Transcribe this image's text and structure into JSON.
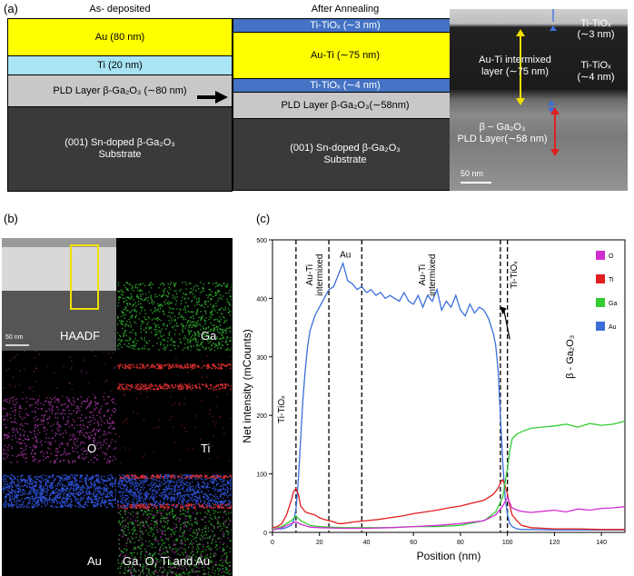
{
  "panel_a": {
    "label": "(a)",
    "as_deposited": {
      "title": "As- deposited",
      "layers": [
        {
          "text": "Au (80 nm)",
          "color": "#ffff00",
          "text_color": "#000000"
        },
        {
          "text": "Ti (20 nm)",
          "color": "#a8e4f4",
          "text_color": "#000000"
        },
        {
          "text": "PLD Layer β-Ga₂O₃ (∼80 nm)",
          "color": "#c8c8c8",
          "text_color": "#000000"
        },
        {
          "text": "(001) Sn-doped β-Ga₂O₃\nSubstrate",
          "color": "#3a3a3a",
          "text_color": "#ffffff"
        }
      ]
    },
    "after_annealing": {
      "title": "After Annealing",
      "layers": [
        {
          "text": "Ti-TiOₓ (∼3 nm)",
          "color": "#4472c4",
          "text_color": "#ffffff"
        },
        {
          "text": "Au-Ti  (∼75 nm)",
          "color": "#ffff00",
          "text_color": "#000000"
        },
        {
          "text": "Ti-TiOₓ  (∼4 nm)",
          "color": "#4472c4",
          "text_color": "#ffffff"
        },
        {
          "text": "PLD Layer β-Ga₂O₃(∼58nm)",
          "color": "#c8c8c8",
          "text_color": "#000000"
        },
        {
          "text": "(001) Sn-doped β-Ga₂O₃\nSubstrate",
          "color": "#3a3a3a",
          "text_color": "#ffffff"
        }
      ]
    },
    "tem": {
      "intermixed_label": "Au-Ti intermixed\nlayer (∼75 nm)",
      "tiox_top_label": "Ti-TiOₓ\n(∼3 nm)",
      "tiox_bottom_label": "Ti-TiOₓ\n(∼4 nm)",
      "pld_label": "β − Ga₂O₃\nPLD Layer(∼58 nm)",
      "scale_bar": "50  nm"
    }
  },
  "panel_b": {
    "label": "(b)",
    "maps": [
      {
        "label": "HAADF",
        "kind": "haadf",
        "scale_bar": "50 nm"
      },
      {
        "label": "Ga",
        "kind": "ga"
      },
      {
        "label": "O",
        "kind": "o"
      },
      {
        "label": "Ti",
        "kind": "ti"
      },
      {
        "label": "Au",
        "kind": "au"
      },
      {
        "label": "Ga, O, Ti and Au",
        "kind": "all"
      }
    ]
  },
  "panel_c": {
    "label": "(c)",
    "chart_data": {
      "type": "line",
      "xlabel": "Position (nm)",
      "ylabel": "Net intensity (mCounts)",
      "xlim": [
        0,
        150
      ],
      "ylim": [
        0,
        500
      ],
      "xticks": [
        0,
        20,
        40,
        60,
        80,
        100,
        120,
        140
      ],
      "yticks": [
        0,
        100,
        200,
        300,
        400,
        500
      ],
      "legend_position": "top-right",
      "legend": [
        {
          "name": "O",
          "color": "#d12dd1"
        },
        {
          "name": "Ti",
          "color": "#e01e1e"
        },
        {
          "name": "Ga",
          "color": "#33cc33"
        },
        {
          "name": "Au",
          "color": "#3a6fd8"
        }
      ],
      "vlines": [
        10,
        24,
        38,
        97,
        100
      ],
      "annotations": [
        {
          "text": "Ti-TiOₓ",
          "x": 5,
          "y": 210
        },
        {
          "text": "Au-Ti\nintermixed",
          "x": 17,
          "y": 440
        },
        {
          "text": "Au",
          "x": 31,
          "y": 470
        },
        {
          "text": "Au-Ti\nintermixed",
          "x": 65,
          "y": 440
        },
        {
          "text": "Ti-TiOₓ",
          "x": 104,
          "y": 440
        },
        {
          "text": "β - Ga₂O₃",
          "x": 128,
          "y": 300
        }
      ],
      "series": [
        {
          "name": "Au",
          "color": "#3a6fd8",
          "x": [
            0,
            2,
            4,
            6,
            8,
            9,
            10,
            11,
            12,
            13,
            14,
            15,
            16,
            18,
            20,
            22,
            24,
            26,
            28,
            30,
            32,
            34,
            36,
            38,
            40,
            42,
            44,
            46,
            48,
            50,
            52,
            54,
            56,
            58,
            60,
            62,
            64,
            66,
            68,
            70,
            72,
            74,
            76,
            78,
            80,
            82,
            84,
            86,
            88,
            90,
            92,
            94,
            95,
            96,
            97,
            98,
            99,
            100,
            101,
            102,
            104,
            106,
            110,
            120,
            130,
            140,
            150
          ],
          "y": [
            5,
            6,
            6,
            8,
            12,
            20,
            40,
            90,
            160,
            230,
            280,
            320,
            345,
            370,
            385,
            400,
            415,
            420,
            440,
            460,
            430,
            425,
            415,
            420,
            410,
            415,
            405,
            410,
            400,
            405,
            400,
            395,
            410,
            395,
            390,
            405,
            385,
            405,
            395,
            415,
            380,
            395,
            385,
            405,
            380,
            370,
            390,
            375,
            385,
            380,
            365,
            340,
            320,
            280,
            200,
            120,
            60,
            30,
            15,
            10,
            6,
            5,
            5,
            4,
            4,
            4,
            4
          ]
        },
        {
          "name": "Ti",
          "color": "#e01e1e",
          "x": [
            0,
            2,
            4,
            6,
            8,
            9,
            10,
            11,
            12,
            14,
            16,
            18,
            20,
            22,
            24,
            26,
            28,
            30,
            35,
            40,
            45,
            50,
            55,
            60,
            65,
            70,
            75,
            80,
            85,
            90,
            92,
            94,
            96,
            97,
            98,
            99,
            100,
            101,
            102,
            104,
            106,
            110,
            120,
            130,
            140,
            150
          ],
          "y": [
            8,
            10,
            15,
            30,
            55,
            70,
            75,
            65,
            45,
            35,
            32,
            30,
            25,
            22,
            20,
            18,
            15,
            15,
            18,
            20,
            22,
            25,
            28,
            32,
            35,
            38,
            42,
            45,
            50,
            55,
            60,
            65,
            75,
            85,
            90,
            80,
            65,
            45,
            30,
            20,
            12,
            8,
            6,
            6,
            5,
            5
          ]
        },
        {
          "name": "Ga",
          "color": "#33cc33",
          "x": [
            0,
            4,
            8,
            10,
            12,
            16,
            20,
            30,
            40,
            50,
            60,
            70,
            80,
            90,
            95,
            98,
            100,
            101,
            102,
            104,
            106,
            108,
            110,
            115,
            120,
            125,
            130,
            135,
            140,
            145,
            150
          ],
          "y": [
            5,
            10,
            20,
            28,
            20,
            12,
            10,
            8,
            8,
            8,
            10,
            10,
            12,
            20,
            35,
            60,
            110,
            140,
            160,
            168,
            172,
            175,
            178,
            180,
            182,
            185,
            180,
            186,
            183,
            185,
            190
          ]
        },
        {
          "name": "O",
          "color": "#d12dd1",
          "x": [
            0,
            4,
            8,
            10,
            12,
            16,
            20,
            30,
            40,
            50,
            60,
            70,
            80,
            90,
            95,
            98,
            100,
            101,
            102,
            104,
            106,
            108,
            110,
            115,
            120,
            125,
            130,
            135,
            140,
            145,
            150
          ],
          "y": [
            4,
            8,
            15,
            18,
            14,
            9,
            8,
            7,
            7,
            8,
            10,
            12,
            15,
            20,
            30,
            45,
            60,
            50,
            42,
            38,
            36,
            35,
            34,
            36,
            38,
            35,
            40,
            38,
            41,
            42,
            44
          ]
        }
      ]
    }
  }
}
